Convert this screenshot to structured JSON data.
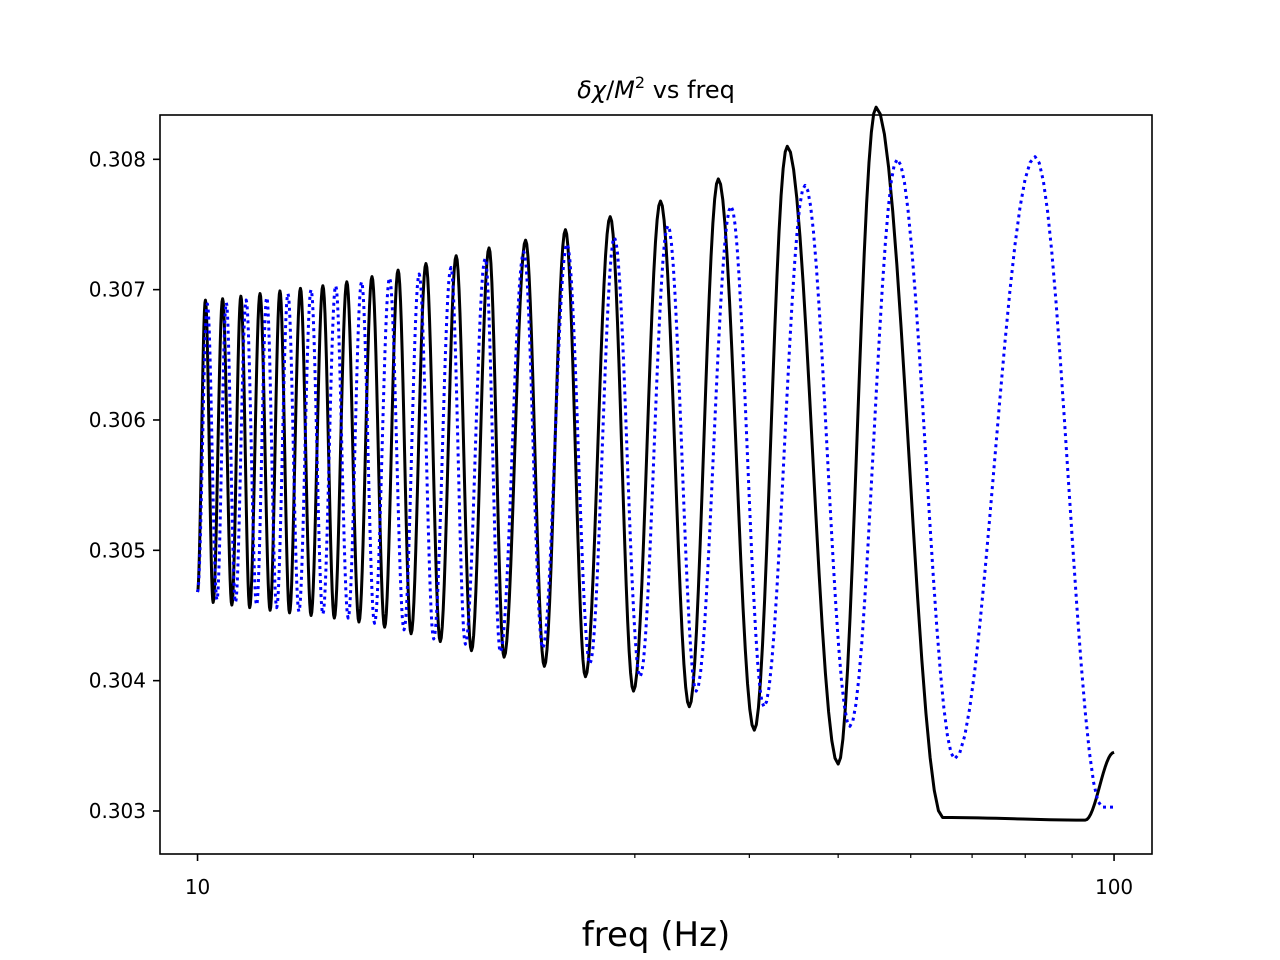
{
  "chart_data": {
    "type": "line",
    "title": {
      "delta": "δ",
      "chi": "χ",
      "slash": "/",
      "mass": "M",
      "exponent": "2",
      "suffix": " vs freq"
    },
    "xlabel": "freq (Hz)",
    "ylabel": "",
    "xscale": "log",
    "xlim": [
      9.1,
      110
    ],
    "ylim": [
      0.30267,
      0.30834
    ],
    "xticks": [
      {
        "value": 10,
        "label": "10"
      },
      {
        "value": 100,
        "label": "100"
      }
    ],
    "yticks": [
      {
        "value": 0.303,
        "label": "0.303"
      },
      {
        "value": 0.304,
        "label": "0.304"
      },
      {
        "value": 0.305,
        "label": "0.305"
      },
      {
        "value": 0.306,
        "label": "0.306"
      },
      {
        "value": 0.307,
        "label": "0.307"
      },
      {
        "value": 0.308,
        "label": "0.308"
      }
    ],
    "grid": false,
    "legend": "none",
    "series": [
      {
        "style": "solid",
        "color": "#000000",
        "x_range": [
          10,
          100
        ],
        "start_y": 0.30468,
        "end_y": 0.30345,
        "peaks": [
          {
            "x": 10.2,
            "y": 0.30692
          },
          {
            "x": 10.65,
            "y": 0.30693
          },
          {
            "x": 11.15,
            "y": 0.30695
          },
          {
            "x": 11.7,
            "y": 0.30697
          },
          {
            "x": 12.3,
            "y": 0.30699
          },
          {
            "x": 12.95,
            "y": 0.30701
          },
          {
            "x": 13.7,
            "y": 0.30703
          },
          {
            "x": 14.55,
            "y": 0.30706
          },
          {
            "x": 15.5,
            "y": 0.3071
          },
          {
            "x": 16.55,
            "y": 0.30715
          },
          {
            "x": 17.75,
            "y": 0.3072
          },
          {
            "x": 19.15,
            "y": 0.30726
          },
          {
            "x": 20.8,
            "y": 0.30732
          },
          {
            "x": 22.8,
            "y": 0.30738
          },
          {
            "x": 25.2,
            "y": 0.30746
          },
          {
            "x": 28.2,
            "y": 0.30756
          },
          {
            "x": 32.0,
            "y": 0.30768
          },
          {
            "x": 37.0,
            "y": 0.30785
          },
          {
            "x": 44.0,
            "y": 0.3081
          },
          {
            "x": 55.0,
            "y": 0.3084
          }
        ],
        "troughs": [
          {
            "x": 10.4,
            "y": 0.3046
          },
          {
            "x": 10.9,
            "y": 0.30458
          },
          {
            "x": 11.4,
            "y": 0.30456
          },
          {
            "x": 12.0,
            "y": 0.30454
          },
          {
            "x": 12.6,
            "y": 0.30452
          },
          {
            "x": 13.3,
            "y": 0.3045
          },
          {
            "x": 14.1,
            "y": 0.30448
          },
          {
            "x": 15.0,
            "y": 0.30445
          },
          {
            "x": 16.0,
            "y": 0.30441
          },
          {
            "x": 17.1,
            "y": 0.30436
          },
          {
            "x": 18.4,
            "y": 0.3043
          },
          {
            "x": 19.9,
            "y": 0.30423
          },
          {
            "x": 21.6,
            "y": 0.30418
          },
          {
            "x": 23.9,
            "y": 0.30411
          },
          {
            "x": 26.5,
            "y": 0.30403
          },
          {
            "x": 29.9,
            "y": 0.30392
          },
          {
            "x": 34.4,
            "y": 0.3038
          },
          {
            "x": 40.5,
            "y": 0.30362
          },
          {
            "x": 50.0,
            "y": 0.30336
          },
          {
            "x": 65.0,
            "y": 0.30295
          },
          {
            "x": 93.0,
            "y": 0.30293
          }
        ]
      },
      {
        "style": "dotted",
        "color": "#0000ff",
        "x_range": [
          10,
          100
        ],
        "start_y": 0.30468,
        "end_y": 0.30303,
        "peaks": [
          {
            "x": 10.25,
            "y": 0.30689
          },
          {
            "x": 10.75,
            "y": 0.3069
          },
          {
            "x": 11.3,
            "y": 0.30692
          },
          {
            "x": 11.9,
            "y": 0.30694
          },
          {
            "x": 12.55,
            "y": 0.30697
          },
          {
            "x": 13.3,
            "y": 0.307
          },
          {
            "x": 14.15,
            "y": 0.30703
          },
          {
            "x": 15.1,
            "y": 0.30706
          },
          {
            "x": 16.2,
            "y": 0.30709
          },
          {
            "x": 17.45,
            "y": 0.30712
          },
          {
            "x": 18.9,
            "y": 0.30717
          },
          {
            "x": 20.6,
            "y": 0.30724
          },
          {
            "x": 22.7,
            "y": 0.30729
          },
          {
            "x": 25.3,
            "y": 0.30735
          },
          {
            "x": 28.5,
            "y": 0.3074
          },
          {
            "x": 32.6,
            "y": 0.30749
          },
          {
            "x": 38.2,
            "y": 0.30764
          },
          {
            "x": 46.0,
            "y": 0.3078
          },
          {
            "x": 58.0,
            "y": 0.308
          },
          {
            "x": 82.0,
            "y": 0.30802
          }
        ],
        "troughs": [
          {
            "x": 10.5,
            "y": 0.30462
          },
          {
            "x": 11.0,
            "y": 0.3046
          },
          {
            "x": 11.6,
            "y": 0.30458
          },
          {
            "x": 12.2,
            "y": 0.30456
          },
          {
            "x": 12.9,
            "y": 0.30453
          },
          {
            "x": 13.7,
            "y": 0.30451
          },
          {
            "x": 14.6,
            "y": 0.30448
          },
          {
            "x": 15.6,
            "y": 0.30444
          },
          {
            "x": 16.8,
            "y": 0.30439
          },
          {
            "x": 18.1,
            "y": 0.30432
          },
          {
            "x": 19.6,
            "y": 0.30428
          },
          {
            "x": 21.4,
            "y": 0.30422
          },
          {
            "x": 23.8,
            "y": 0.30425
          },
          {
            "x": 26.8,
            "y": 0.30413
          },
          {
            "x": 30.4,
            "y": 0.30403
          },
          {
            "x": 35.0,
            "y": 0.30392
          },
          {
            "x": 41.5,
            "y": 0.3038
          },
          {
            "x": 51.5,
            "y": 0.30365
          },
          {
            "x": 67.0,
            "y": 0.3034
          },
          {
            "x": 97.0,
            "y": 0.30303
          }
        ]
      }
    ]
  }
}
